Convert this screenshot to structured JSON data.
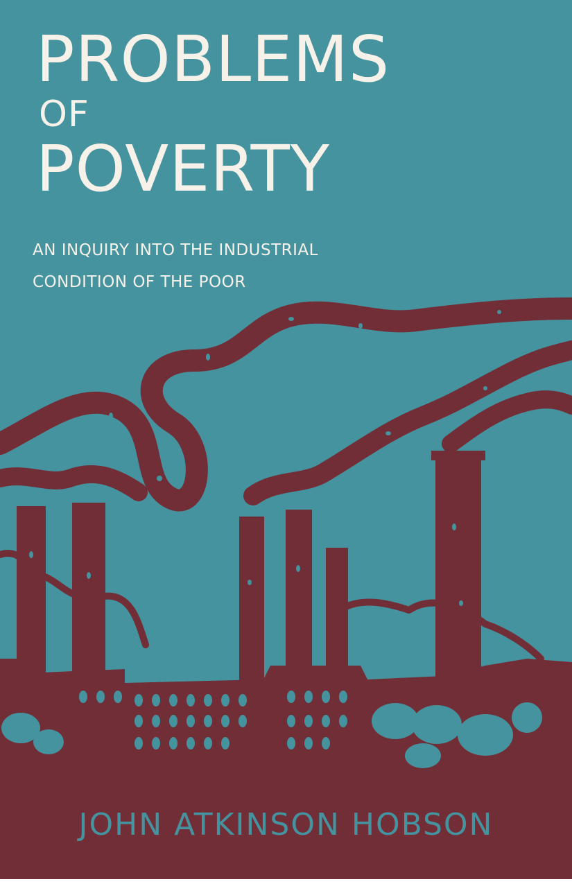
{
  "book": {
    "title_line1": "PROBLEMS",
    "title_line2": "OF",
    "title_line3": "POVERTY",
    "subtitle_line1": "AN INQUIRY INTO THE INDUSTRIAL",
    "subtitle_line2": "CONDITION OF THE POOR",
    "author": "JOHN ATKINSON HOBSON"
  },
  "colors": {
    "background": "#45939f",
    "factory": "#722e37",
    "title_text": "#f6f2ea",
    "author_text": "#45939f"
  },
  "illustration": "factory-smokestacks-illustration"
}
